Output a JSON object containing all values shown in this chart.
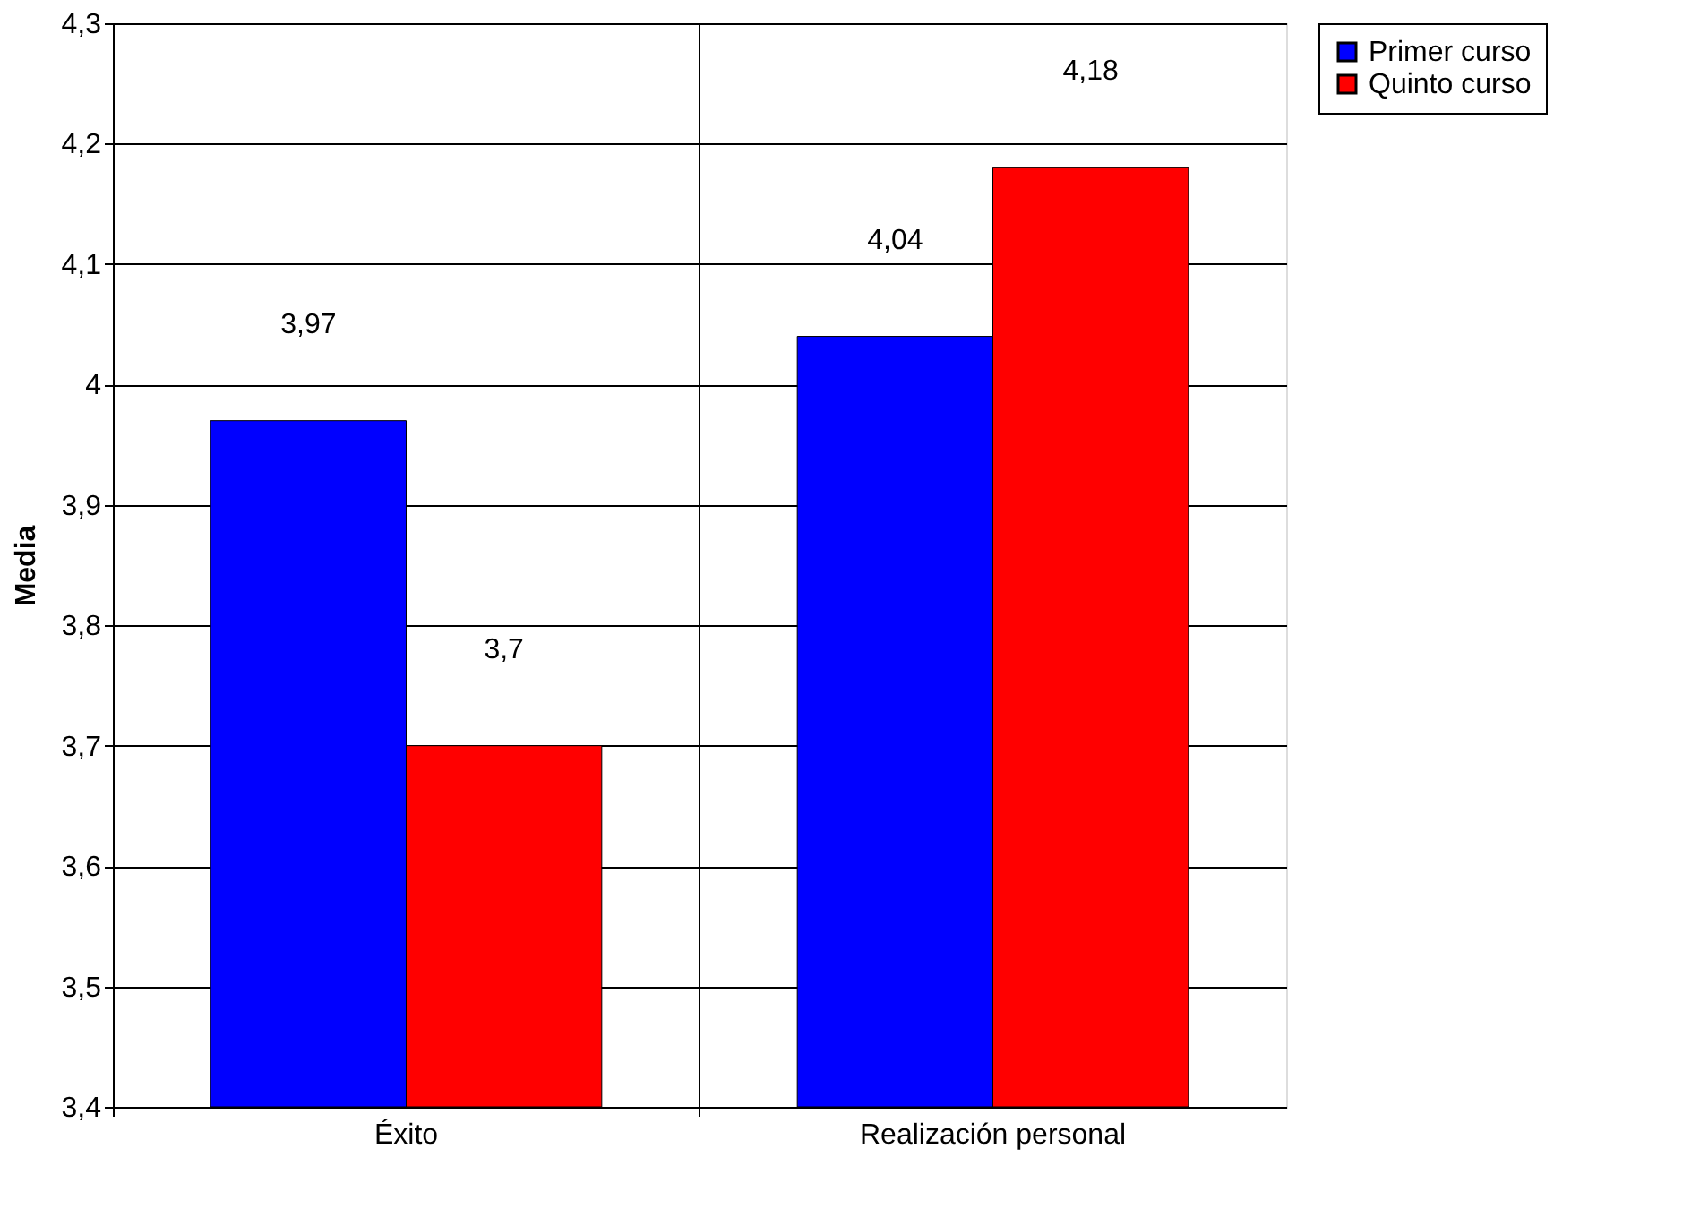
{
  "chart_data": {
    "type": "bar",
    "ylabel": "Media",
    "categories": [
      "Éxito",
      "Realización personal"
    ],
    "series": [
      {
        "name": "Primer curso",
        "color": "#0000ff",
        "values": [
          3.97,
          4.04
        ],
        "value_labels": [
          "3,97",
          "4,04"
        ]
      },
      {
        "name": "Quinto curso",
        "color": "#ff0000",
        "values": [
          3.7,
          4.18
        ],
        "value_labels": [
          "3,7",
          "4,18"
        ]
      }
    ],
    "ylim": [
      3.4,
      4.3
    ],
    "yticks": [
      {
        "value": 3.4,
        "label": "3,4"
      },
      {
        "value": 3.5,
        "label": "3,5"
      },
      {
        "value": 3.6,
        "label": "3,6"
      },
      {
        "value": 3.7,
        "label": "3,7"
      },
      {
        "value": 3.8,
        "label": "3,8"
      },
      {
        "value": 3.9,
        "label": "3,9"
      },
      4,
      {
        "value": 4.1,
        "label": "4,1"
      },
      {
        "value": 4.2,
        "label": "4,2"
      },
      {
        "value": 4.3,
        "label": "4,3"
      }
    ],
    "grid": true,
    "legend": "right"
  }
}
